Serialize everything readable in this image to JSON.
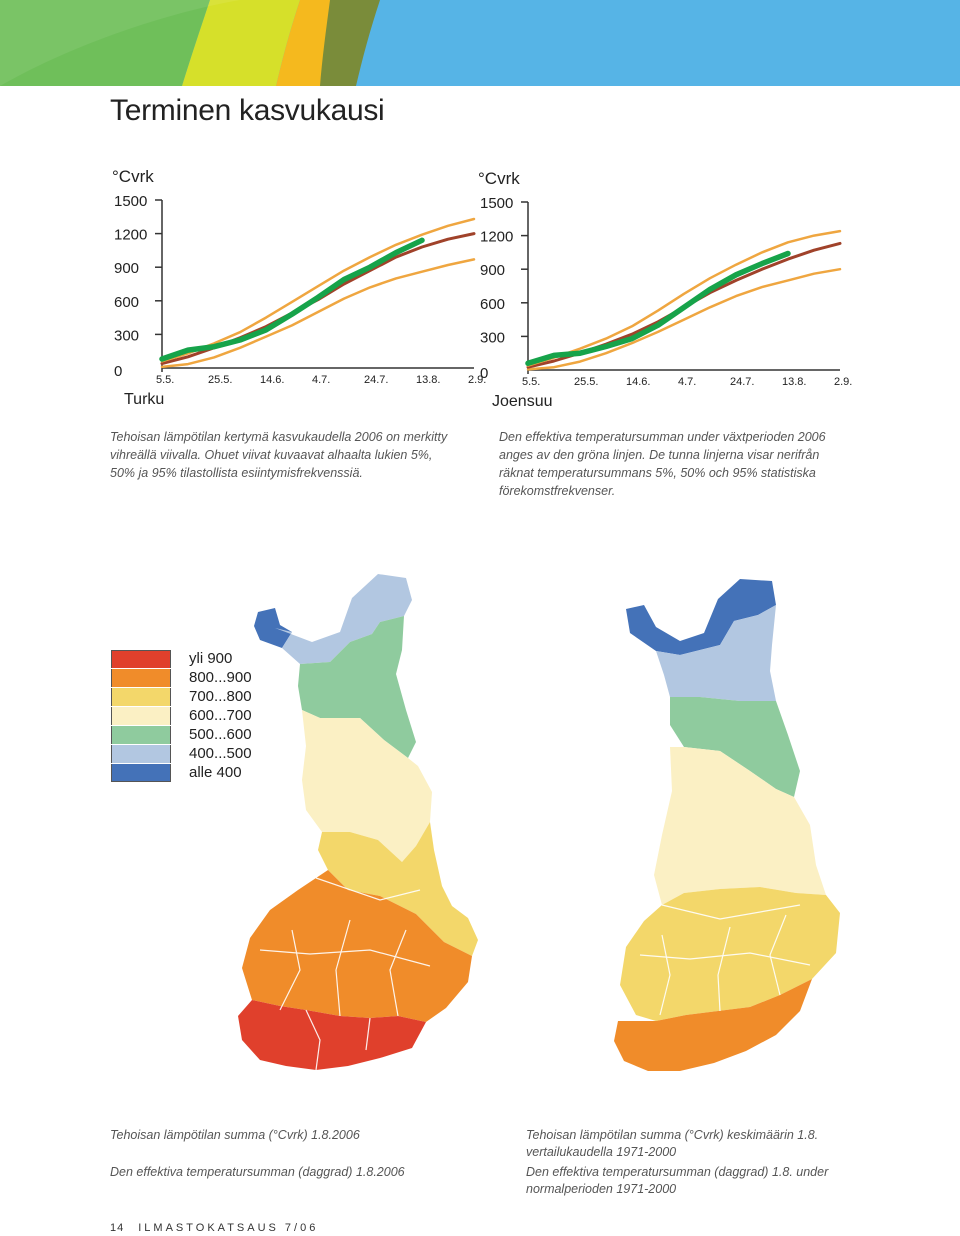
{
  "page": {
    "title": "Terminen kasvukausi",
    "page_number": "14",
    "publication": "ILMASTOKATSAUS 7/06"
  },
  "colors": {
    "banner": [
      "#6fbf5a",
      "#d6e02a",
      "#f5b91e",
      "#7a8c3a",
      "#56b4e6"
    ],
    "observed_2006": "#16a34a",
    "median": "#a0422a",
    "percentile_5_95": "#efa640"
  },
  "chart_data": [
    {
      "type": "line",
      "station": "Turku",
      "ylabel": "°Cvrk",
      "ylim": [
        0,
        1500
      ],
      "yticks": [
        "0",
        "300",
        "600",
        "900",
        "1200",
        "1500"
      ],
      "xticks": [
        "5.5.",
        "25.5.",
        "14.6.",
        "4.7.",
        "24.7.",
        "13.8.",
        "2.9."
      ],
      "x": [
        "5.5.",
        "15.5.",
        "25.5.",
        "4.6.",
        "14.6.",
        "24.6.",
        "4.7.",
        "14.7.",
        "24.7.",
        "3.8.",
        "13.8.",
        "23.8.",
        "2.9."
      ],
      "series": [
        {
          "values": [
            10,
            35,
            95,
            180,
            280,
            380,
            500,
            620,
            720,
            800,
            860,
            920,
            970
          ]
        },
        {
          "values": [
            40,
            100,
            180,
            270,
            370,
            490,
            610,
            750,
            870,
            990,
            1080,
            1150,
            1200
          ]
        },
        {
          "values": [
            60,
            130,
            220,
            320,
            450,
            590,
            730,
            870,
            990,
            1100,
            1190,
            1270,
            1330
          ]
        },
        {
          "values": [
            80,
            160,
            190,
            250,
            340,
            480,
            630,
            790,
            900,
            1030,
            1140,
            null,
            null
          ]
        }
      ]
    },
    {
      "type": "line",
      "station": "Joensuu",
      "ylabel": "°Cvrk",
      "ylim": [
        0,
        1500
      ],
      "yticks": [
        "0",
        "300",
        "600",
        "900",
        "1200",
        "1500"
      ],
      "xticks": [
        "5.5.",
        "25.5.",
        "14.6.",
        "4.7.",
        "24.7.",
        "13.8.",
        "2.9."
      ],
      "x": [
        "5.5.",
        "15.5.",
        "25.5.",
        "4.6.",
        "14.6.",
        "24.6.",
        "4.7.",
        "14.7.",
        "24.7.",
        "3.8.",
        "13.8.",
        "23.8.",
        "2.9."
      ],
      "series": [
        {
          "values": [
            5,
            25,
            75,
            150,
            240,
            340,
            450,
            560,
            660,
            740,
            800,
            860,
            900
          ]
        },
        {
          "values": [
            25,
            80,
            150,
            230,
            320,
            430,
            560,
            690,
            800,
            900,
            990,
            1070,
            1130
          ]
        },
        {
          "values": [
            40,
            110,
            190,
            280,
            390,
            530,
            680,
            820,
            940,
            1050,
            1140,
            1200,
            1240
          ]
        },
        {
          "values": [
            60,
            130,
            150,
            210,
            280,
            400,
            560,
            720,
            850,
            950,
            1040,
            null,
            null
          ]
        }
      ]
    }
  ],
  "captions": {
    "fi": "Tehoisan lämpötilan kertymä kasvukaudella 2006 on merkitty vihreällä viivalla. Ohuet viivat kuvaavat alhaalta lukien 5%, 50% ja 95% tilastollista esiintymisfrekvenssiä.",
    "sv": "Den effektiva temperatursumman under växtperioden 2006 anges av den gröna linjen. De tunna linjerna visar nerifrån räknat temperatursummans 5%, 50% och 95% statistiska förekomstfrekvenser."
  },
  "legend": [
    {
      "label": "yli 900",
      "color": "#e0402c"
    },
    {
      "label": "800...900",
      "color": "#f08c2a"
    },
    {
      "label": "700...800",
      "color": "#f3d76a"
    },
    {
      "label": "600...700",
      "color": "#fbf0c4"
    },
    {
      "label": "500...600",
      "color": "#8fcb9e"
    },
    {
      "label": "400...500",
      "color": "#b2c7e1"
    },
    {
      "label": "alle 400",
      "color": "#4472b8"
    }
  ],
  "map_captions": {
    "left_fi": "Tehoisan lämpötilan summa (°Cvrk) 1.8.2006",
    "left_sv": "Den effektiva temperatursumman (daggrad) 1.8.2006",
    "right_fi": "Tehoisan lämpötilan summa (°Cvrk) keskimäärin 1.8. vertailukaudella 1971-2000",
    "right_sv": "Den effektiva temperatursumman (daggrad) 1.8. under normalperioden 1971-2000"
  },
  "maps": {
    "left": [
      "#4472b8",
      "#b2c7e1",
      "#8fcb9e",
      "#fbf0c4",
      "#f3d76a",
      "#f08c2a",
      "#e0402c"
    ],
    "right": [
      "#4472b8",
      "#b2c7e1",
      "#8fcb9e",
      "#fbf0c4",
      "#f3d76a",
      "#f08c2a"
    ]
  }
}
